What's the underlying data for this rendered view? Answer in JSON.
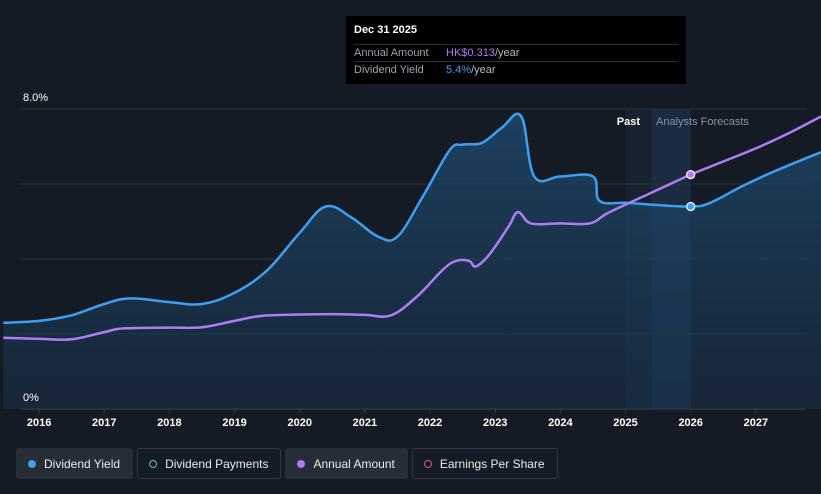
{
  "tooltip": {
    "date": "Dec 31 2025",
    "rows": [
      {
        "label": "Annual Amount",
        "value": "HK$0.313",
        "unit": "/year"
      },
      {
        "label": "Dividend Yield",
        "value": "5.4%",
        "unit": "/year"
      }
    ]
  },
  "zones": {
    "past": "Past",
    "forecast": "Analysts Forecasts"
  },
  "legend": [
    {
      "label": "Dividend Yield",
      "icon": "filled-dot",
      "color": "#3d9ff2",
      "active": true
    },
    {
      "label": "Dividend Payments",
      "icon": "hollow-dot",
      "color": "#52cbc1",
      "active": false
    },
    {
      "label": "Annual Amount",
      "icon": "filled-dot",
      "color": "#b07cf5",
      "active": true
    },
    {
      "label": "Earnings Per Share",
      "icon": "hollow-dot",
      "color": "#d8559b",
      "active": false
    }
  ],
  "colors": {
    "background": "#151b24",
    "yield": "#3d9ff2",
    "amount": "#b07cf5",
    "forecast_band": "#1b2c42"
  },
  "chart_data": {
    "type": "line",
    "x_axis": {
      "ticks": [
        "2016",
        "2017",
        "2018",
        "2019",
        "2020",
        "2021",
        "2022",
        "2023",
        "2024",
        "2025",
        "2026",
        "2027"
      ],
      "range": [
        2015.4,
        2028.0
      ]
    },
    "y_axis": {
      "label_top": "8.0%",
      "label_bottom": "0%",
      "range": [
        0,
        8.0
      ],
      "grid": true
    },
    "forecast_start": 2025.4,
    "highlight_x": 2026.0,
    "series": [
      {
        "name": "Dividend Yield",
        "unit": "%",
        "points": [
          [
            2015.45,
            2.3
          ],
          [
            2016.0,
            2.35
          ],
          [
            2016.5,
            2.5
          ],
          [
            2017.0,
            2.8
          ],
          [
            2017.4,
            2.95
          ],
          [
            2018.0,
            2.85
          ],
          [
            2018.5,
            2.8
          ],
          [
            2019.0,
            3.1
          ],
          [
            2019.5,
            3.7
          ],
          [
            2020.0,
            4.7
          ],
          [
            2020.4,
            5.4
          ],
          [
            2020.8,
            5.1
          ],
          [
            2021.2,
            4.6
          ],
          [
            2021.5,
            4.6
          ],
          [
            2021.9,
            5.7
          ],
          [
            2022.3,
            6.9
          ],
          [
            2022.5,
            7.05
          ],
          [
            2022.8,
            7.1
          ],
          [
            2023.1,
            7.5
          ],
          [
            2023.4,
            7.8
          ],
          [
            2023.6,
            6.2
          ],
          [
            2024.0,
            6.2
          ],
          [
            2024.5,
            6.2
          ],
          [
            2024.6,
            5.55
          ],
          [
            2025.0,
            5.5
          ],
          [
            2025.4,
            5.45
          ],
          [
            2026.0,
            5.4
          ],
          [
            2026.3,
            5.5
          ],
          [
            2026.8,
            5.95
          ],
          [
            2027.3,
            6.35
          ],
          [
            2028.0,
            6.85
          ]
        ]
      },
      {
        "name": "Annual Amount",
        "unit": "HK$",
        "points": [
          [
            2015.45,
            1.9
          ],
          [
            2016.0,
            1.87
          ],
          [
            2016.5,
            1.86
          ],
          [
            2017.0,
            2.05
          ],
          [
            2017.3,
            2.15
          ],
          [
            2018.0,
            2.17
          ],
          [
            2018.5,
            2.18
          ],
          [
            2019.0,
            2.35
          ],
          [
            2019.4,
            2.48
          ],
          [
            2020.0,
            2.52
          ],
          [
            2020.5,
            2.53
          ],
          [
            2021.0,
            2.51
          ],
          [
            2021.4,
            2.5
          ],
          [
            2021.8,
            3.0
          ],
          [
            2022.2,
            3.72
          ],
          [
            2022.4,
            3.95
          ],
          [
            2022.6,
            3.95
          ],
          [
            2022.7,
            3.8
          ],
          [
            2022.9,
            4.1
          ],
          [
            2023.2,
            4.85
          ],
          [
            2023.35,
            5.25
          ],
          [
            2023.55,
            4.95
          ],
          [
            2024.0,
            4.95
          ],
          [
            2024.45,
            4.95
          ],
          [
            2024.7,
            5.2
          ],
          [
            2025.0,
            5.45
          ],
          [
            2025.5,
            5.85
          ],
          [
            2026.0,
            6.25
          ],
          [
            2026.5,
            6.6
          ],
          [
            2027.0,
            6.95
          ],
          [
            2027.5,
            7.35
          ],
          [
            2028.0,
            7.8
          ]
        ]
      }
    ],
    "markers": [
      {
        "series": "Annual Amount",
        "x": 2026.0,
        "y": 6.25
      },
      {
        "series": "Dividend Yield",
        "x": 2026.0,
        "y": 5.4
      }
    ]
  }
}
